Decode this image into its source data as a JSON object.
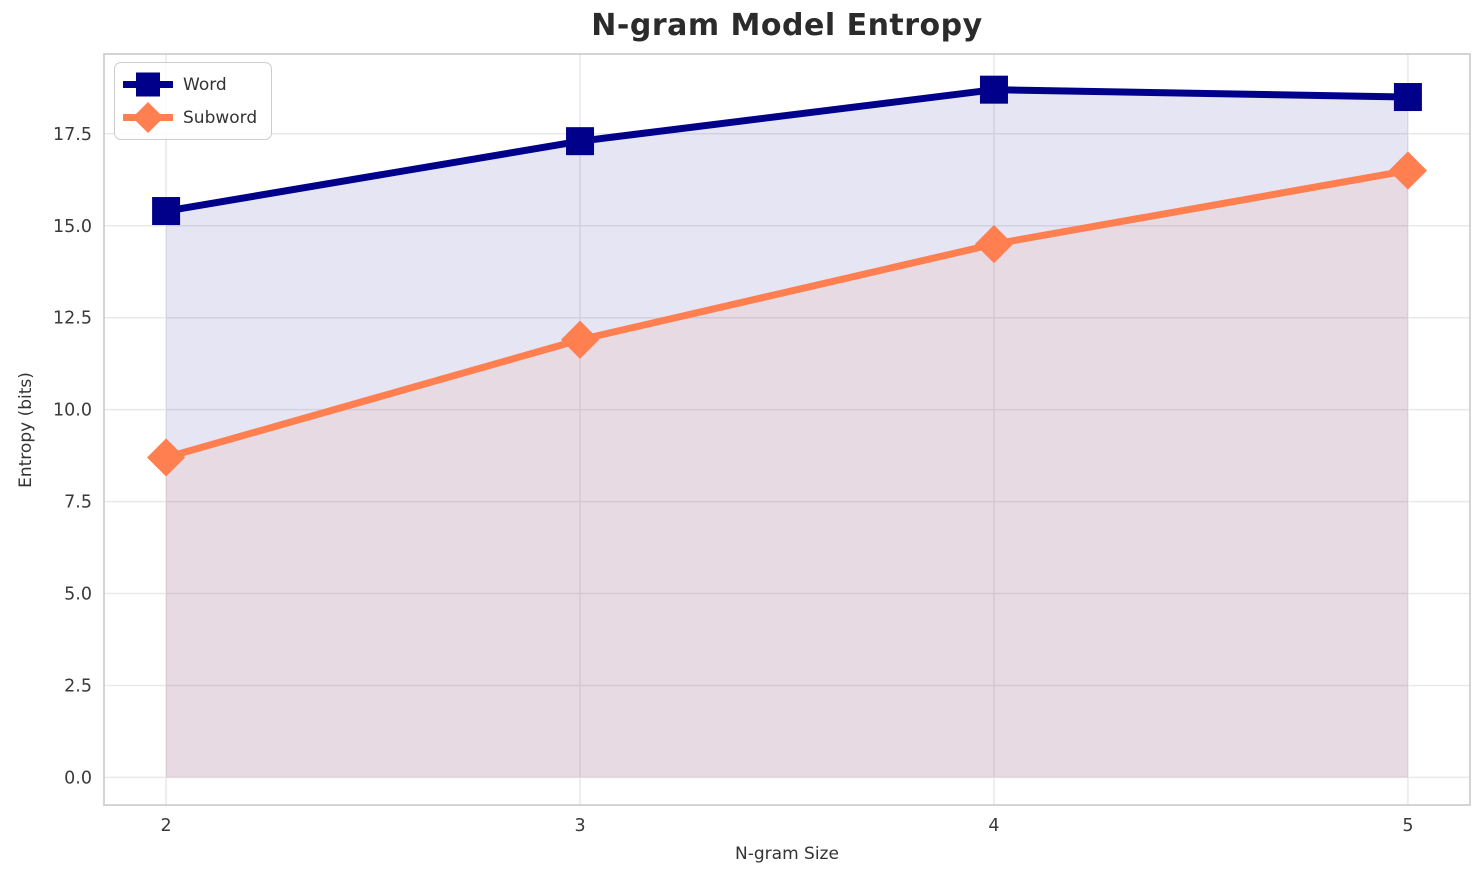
{
  "chart_data": {
    "type": "line",
    "title": "N-gram Model Entropy",
    "xlabel": "N-gram Size",
    "ylabel": "Entropy (bits)",
    "x": [
      2,
      3,
      4,
      5
    ],
    "x_tick_labels": [
      "2",
      "3",
      "4",
      "5"
    ],
    "y_ticks": [
      0.0,
      2.5,
      5.0,
      7.5,
      10.0,
      12.5,
      15.0,
      17.5
    ],
    "y_tick_labels": [
      "0.0",
      "2.5",
      "5.0",
      "7.5",
      "10.0",
      "12.5",
      "15.0",
      "17.5"
    ],
    "xlim": [
      1.85,
      5.15
    ],
    "ylim": [
      -0.75,
      19.67
    ],
    "grid": true,
    "legend_position": "upper left",
    "series": [
      {
        "name": "Word",
        "color": "#00008b",
        "marker": "square",
        "fill_opacity": 0.1,
        "values": [
          15.4,
          17.3,
          18.7,
          18.5
        ]
      },
      {
        "name": "Subword",
        "color": "#ff7f50",
        "marker": "diamond",
        "fill_opacity": 0.1,
        "values": [
          8.7,
          11.9,
          14.5,
          16.5
        ]
      }
    ],
    "colors": {
      "grid": "#e9e9e9",
      "spine": "#c9c9c9",
      "tick_label": "#3a3a3a",
      "title_text": "#2b2b2b"
    }
  }
}
